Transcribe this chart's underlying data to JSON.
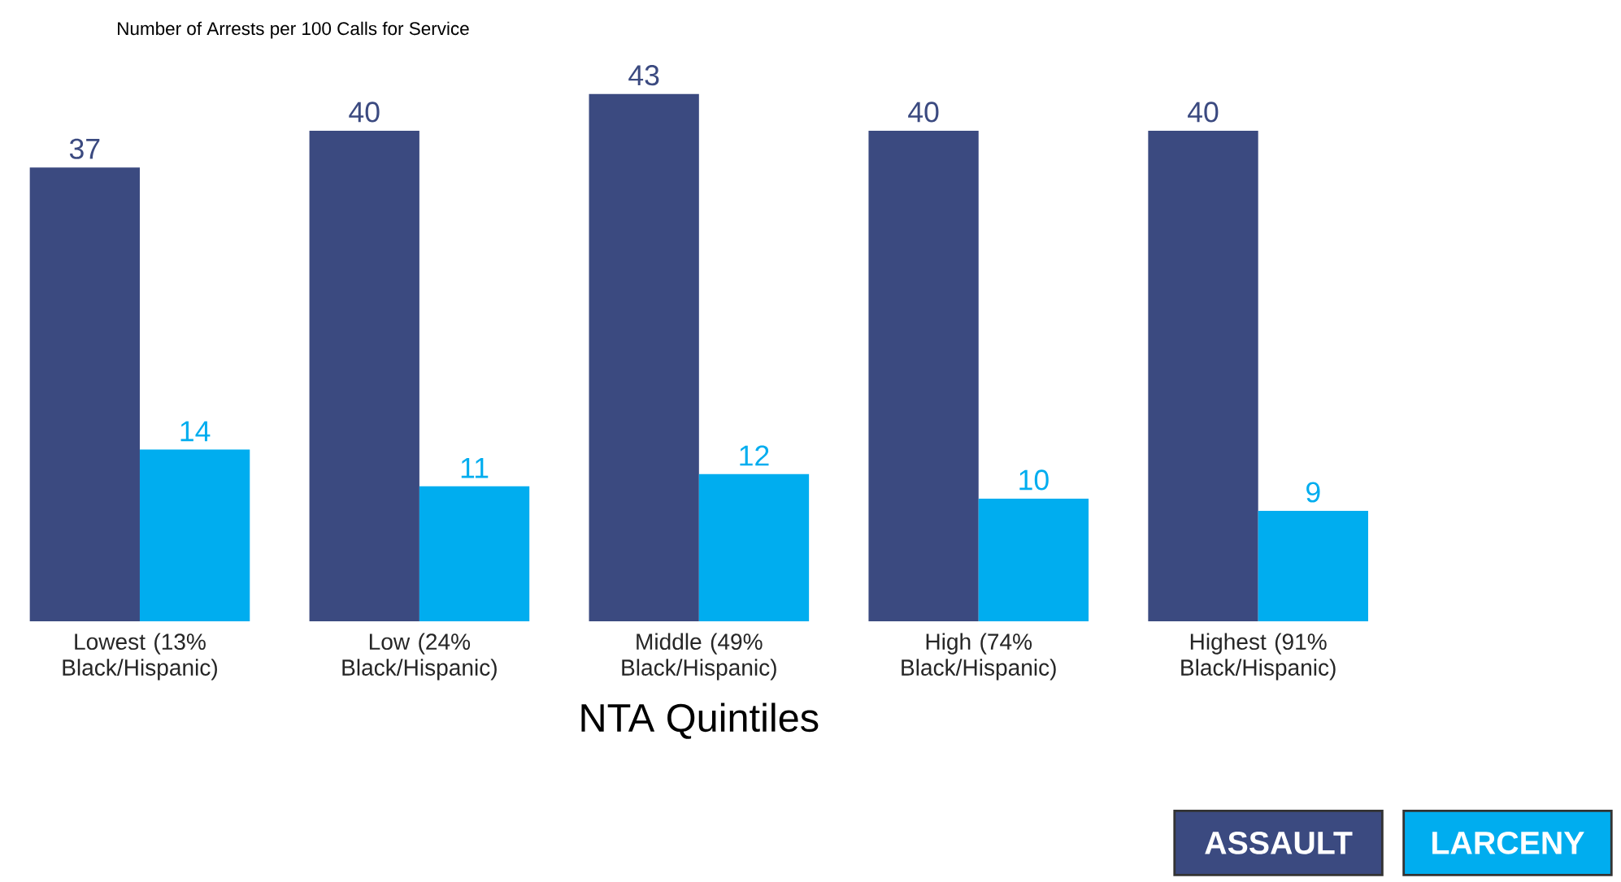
{
  "chart_data": {
    "type": "bar",
    "ylabel": "Number of Arrests per 100 Calls for Service",
    "xlabel": "NTA Quintiles",
    "categories": [
      "Lowest (13% Black/Hispanic)",
      "Low (24% Black/Hispanic)",
      "Middle (49% Black/Hispanic)",
      "High (74% Black/Hispanic)",
      "Highest (91% Black/Hispanic)"
    ],
    "series": [
      {
        "name": "ASSAULT",
        "color": "#3b4a80",
        "values": [
          37,
          40,
          43,
          40,
          40
        ]
      },
      {
        "name": "LARCENY",
        "color": "#00adef",
        "values": [
          14,
          11,
          12,
          10,
          9
        ]
      }
    ],
    "data_labels": true,
    "legend": "bottom right"
  }
}
